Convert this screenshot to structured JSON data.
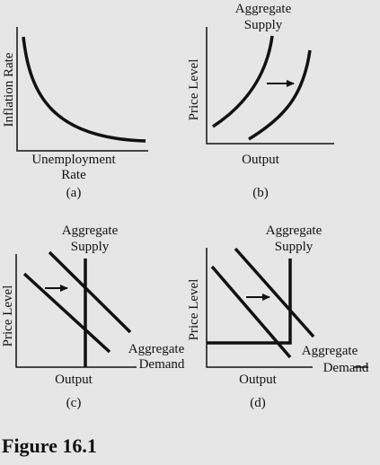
{
  "figure": {
    "title": "Figure 16.1",
    "panels": [
      {
        "id": "a",
        "caption": "(a)",
        "y_label": "Inflation Rate",
        "x_label_line1": "Unemployment",
        "x_label_line2": "Rate"
      },
      {
        "id": "b",
        "caption": "(b)",
        "y_label": "Price Level",
        "x_label": "Output",
        "curve_label_line1": "Aggregate",
        "curve_label_line2": "Supply"
      },
      {
        "id": "c",
        "caption": "(c)",
        "y_label": "Price Level",
        "x_label": "Output",
        "supply_label_line1": "Aggregate",
        "supply_label_line2": "Supply",
        "demand_label_line1": "Aggregate",
        "demand_label_line2": "Demand"
      },
      {
        "id": "d",
        "caption": "(d)",
        "y_label": "Price Level",
        "x_label": "Output",
        "supply_label_line1": "Aggregate",
        "supply_label_line2": "Supply",
        "demand_label_line1": "Aggregate",
        "demand_label_line2": "Demand"
      }
    ]
  },
  "colors": {
    "background": "#e6e6e6",
    "ink": "#111111"
  }
}
